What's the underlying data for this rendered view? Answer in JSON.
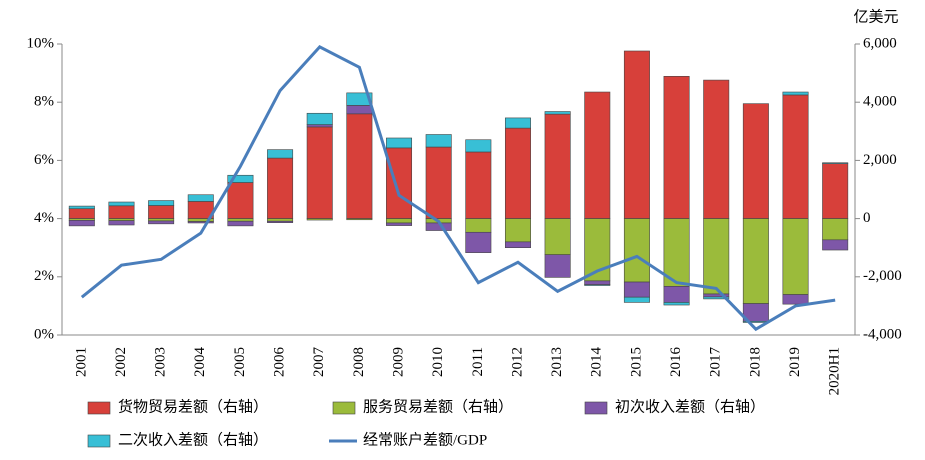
{
  "chart_data": {
    "type": "bar-line",
    "y2_unit": "亿美元",
    "categories": [
      "2001",
      "2002",
      "2003",
      "2004",
      "2005",
      "2006",
      "2007",
      "2008",
      "2009",
      "2010",
      "2011",
      "2012",
      "2013",
      "2014",
      "2015",
      "2016",
      "2017",
      "2018",
      "2019",
      "2020H1"
    ],
    "series": [
      {
        "name": "货物贸易差额（右轴）",
        "type": "bar",
        "axis": "y2",
        "color": "#d7403a",
        "values": [
          340,
          440,
          450,
          590,
          1240,
          2080,
          3150,
          3600,
          2430,
          2460,
          2290,
          3110,
          3590,
          4350,
          5760,
          4890,
          4760,
          3950,
          4250,
          1890
        ]
      },
      {
        "name": "服务贸易差额（右轴）",
        "type": "bar",
        "axis": "y2",
        "color": "#9bbb3b",
        "values": [
          -60,
          -70,
          -80,
          -100,
          -90,
          -90,
          -50,
          -40,
          -150,
          -150,
          -470,
          -800,
          -1240,
          -2140,
          -2180,
          -2330,
          -2590,
          -2920,
          -2610,
          -730
        ]
      },
      {
        "name": "初次收入差额（右轴）",
        "type": "bar",
        "axis": "y2",
        "color": "#7e57a8",
        "values": [
          -190,
          -150,
          -100,
          -50,
          -160,
          -50,
          80,
          290,
          -90,
          -260,
          -700,
          -200,
          -780,
          -130,
          -520,
          -550,
          -100,
          -610,
          -330,
          -350
        ]
      },
      {
        "name": "二次收入差额（右轴）",
        "type": "bar",
        "axis": "y2",
        "color": "#38bfd6",
        "values": [
          90,
          130,
          170,
          230,
          250,
          290,
          390,
          430,
          340,
          430,
          420,
          350,
          90,
          -30,
          -180,
          -90,
          -70,
          -40,
          100,
          30
        ]
      },
      {
        "name": "经常账户差额/GDP",
        "type": "line",
        "color": "#4a7ebb",
        "values": [
          1.3,
          2.4,
          2.6,
          3.5,
          5.8,
          8.4,
          9.9,
          9.2,
          4.8,
          3.9,
          1.8,
          2.5,
          1.5,
          2.2,
          2.7,
          1.8,
          1.6,
          0.2,
          1.0,
          1.2
        ]
      }
    ],
    "ylim": [
      0,
      10
    ],
    "yticks": [
      {
        "value": 0,
        "label": "0%"
      },
      {
        "value": 2,
        "label": "2%"
      },
      {
        "value": 4,
        "label": "4%"
      },
      {
        "value": 6,
        "label": "6%"
      },
      {
        "value": 8,
        "label": "8%"
      },
      {
        "value": 10,
        "label": "10%"
      }
    ],
    "y2lim": [
      -4000,
      6000
    ],
    "y2ticks": [
      {
        "value": -4000,
        "label": "-4,000"
      },
      {
        "value": -2000,
        "label": "-2,000"
      },
      0,
      {
        "value": 2000,
        "label": "2,000"
      },
      {
        "value": 4000,
        "label": "4,000"
      },
      {
        "value": 6000,
        "label": "6,000"
      }
    ]
  }
}
